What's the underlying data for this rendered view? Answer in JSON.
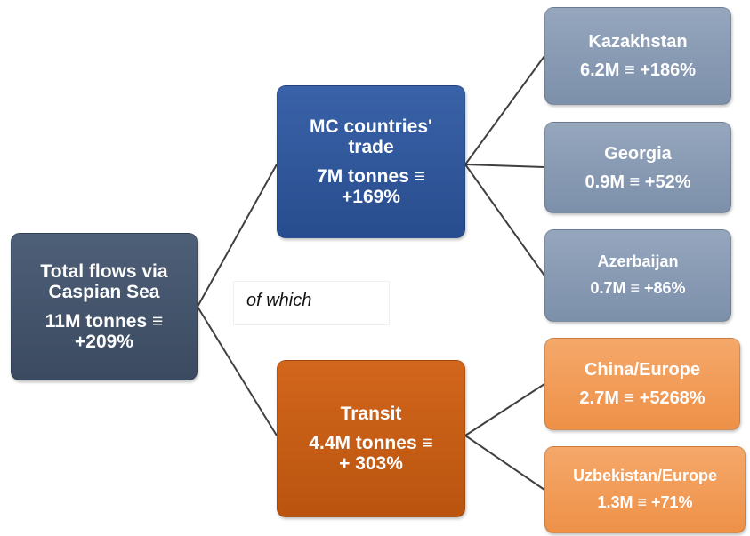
{
  "nodes": [
    {
      "title": [
        "Total flows via",
        "Caspian Sea"
      ],
      "value": [
        "11M tonnes ≡",
        "+209%"
      ]
    },
    {
      "title": [
        "MC countries'",
        "trade"
      ],
      "value": [
        "7M tonnes ≡",
        "+169%"
      ]
    },
    {
      "title": [
        "Transit"
      ],
      "value": [
        "4.4M tonnes ≡",
        "+ 303%"
      ]
    },
    {
      "title": [
        "Kazakhstan"
      ],
      "value": [
        "6.2M ≡ +186%"
      ]
    },
    {
      "title": [
        "Georgia"
      ],
      "value": [
        "0.9M ≡ +52%"
      ]
    },
    {
      "title": [
        "Azerbaijan"
      ],
      "value": [
        "0.7M ≡ +86%"
      ]
    },
    {
      "title": [
        "China/Europe"
      ],
      "value": [
        "2.7M ≡ +5268%"
      ]
    },
    {
      "title": [
        "Uzbekistan/Europe"
      ],
      "value": [
        "1.3M ≡ +71%"
      ]
    }
  ],
  "note": "of which"
}
